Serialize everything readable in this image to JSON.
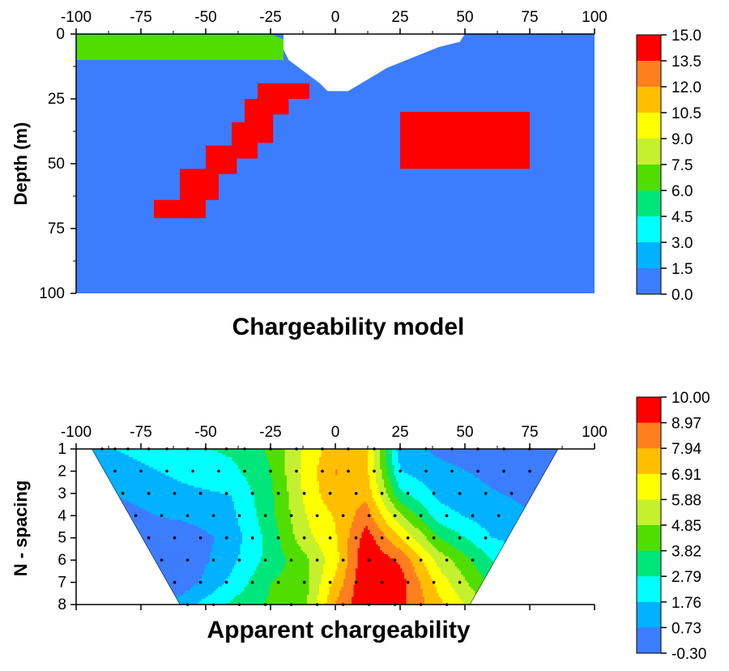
{
  "chart_data": [
    {
      "type": "heatmap",
      "title": "Chargeability model",
      "xlabel": "",
      "ylabel": "Depth (m)",
      "xlim": [
        -100,
        100
      ],
      "ylim": [
        0,
        100
      ],
      "x_ticks": [
        "-100",
        "-75",
        "-50",
        "-25",
        "0",
        "25",
        "50",
        "75",
        "100"
      ],
      "y_ticks": [
        "0",
        "25",
        "50",
        "75",
        "100"
      ],
      "colorbar_labels": [
        "15.0",
        "13.5",
        "12.0",
        "10.5",
        "9.0",
        "7.5",
        "6.0",
        "4.5",
        "3.0",
        "1.5",
        "0.0"
      ],
      "colors": [
        "#ff0000",
        "#ff7f1f",
        "#ffbf00",
        "#ffff00",
        "#c5f02e",
        "#4fde00",
        "#00e67a",
        "#00ffff",
        "#00b2ff",
        "#3c7dff"
      ],
      "background_value": 0.75,
      "regions": [
        {
          "name": "near-surface layer",
          "value": 6.75,
          "polygon": [
            [
              -100,
              0
            ],
            [
              -25,
              0
            ],
            [
              -20,
              2
            ],
            [
              -20,
              10
            ],
            [
              -100,
              10
            ]
          ]
        },
        {
          "name": "dipping body",
          "value": 14.25,
          "polygon": [
            [
              -30,
              19
            ],
            [
              -10,
              19
            ],
            [
              -10,
              25
            ],
            [
              -18,
              25
            ],
            [
              -18,
              31
            ],
            [
              -24,
              31
            ],
            [
              -24,
              42
            ],
            [
              -30,
              42
            ],
            [
              -30,
              48
            ],
            [
              -38,
              48
            ],
            [
              -38,
              54
            ],
            [
              -45,
              54
            ],
            [
              -45,
              64
            ],
            [
              -50,
              64
            ],
            [
              -50,
              71
            ],
            [
              -70,
              71
            ],
            [
              -70,
              64
            ],
            [
              -60,
              64
            ],
            [
              -60,
              52
            ],
            [
              -50,
              52
            ],
            [
              -50,
              43
            ],
            [
              -40,
              43
            ],
            [
              -40,
              34
            ],
            [
              -35,
              34
            ],
            [
              -35,
              25
            ],
            [
              -30,
              25
            ]
          ]
        },
        {
          "name": "rectangular body",
          "value": 14.25,
          "polygon": [
            [
              25,
              30
            ],
            [
              75,
              30
            ],
            [
              75,
              52
            ],
            [
              25,
              52
            ]
          ]
        }
      ],
      "blank_region": [
        [
          -20,
          0
        ],
        [
          50,
          0
        ],
        [
          48,
          3
        ],
        [
          40,
          5
        ],
        [
          35,
          7
        ],
        [
          30,
          9
        ],
        [
          25,
          11
        ],
        [
          20,
          13
        ],
        [
          15,
          16
        ],
        [
          10,
          19
        ],
        [
          5,
          22
        ],
        [
          -3,
          22
        ],
        [
          -6,
          19
        ],
        [
          -10,
          16
        ],
        [
          -14,
          13
        ],
        [
          -18,
          10
        ],
        [
          -20,
          6
        ]
      ]
    },
    {
      "type": "heatmap",
      "title": "Apparent chargeability",
      "xlabel": "",
      "ylabel": "N - spacing",
      "xlim": [
        -100,
        100
      ],
      "ylim": [
        1,
        8
      ],
      "x_ticks": [
        "-100",
        "-75",
        "-50",
        "-25",
        "0",
        "25",
        "50",
        "75",
        "100"
      ],
      "y_ticks": [
        "1",
        "2",
        "3",
        "4",
        "5",
        "6",
        "7",
        "8"
      ],
      "colorbar_labels": [
        "10.00",
        "8.97",
        "7.94",
        "6.91",
        "5.88",
        "4.85",
        "3.82",
        "2.79",
        "1.76",
        "0.73",
        "-0.30"
      ],
      "colors": [
        "#ff0000",
        "#ff7f1f",
        "#ffbf00",
        "#ffff00",
        "#c5f02e",
        "#4fde00",
        "#00e67a",
        "#00ffff",
        "#00b2ff",
        "#3c7dff"
      ],
      "trapezoid": [
        [
          -94,
          1
        ],
        [
          86,
          1
        ],
        [
          52,
          8
        ],
        [
          -60,
          8
        ]
      ],
      "grid_x": [
        -94,
        -60,
        -40,
        -25,
        -12,
        0,
        12,
        25,
        40,
        60,
        86
      ],
      "grid_y": [
        1,
        2,
        3,
        4,
        5,
        6,
        7,
        8
      ],
      "grid_values": [
        [
          1.5,
          2.5,
          3.0,
          4.0,
          6.0,
          7.5,
          7.0,
          1.2,
          0.5,
          0.2,
          0.0
        ],
        [
          1.0,
          2.0,
          2.5,
          3.8,
          6.2,
          8.0,
          7.2,
          1.8,
          1.0,
          0.5,
          0.2
        ],
        [
          0.5,
          1.5,
          1.8,
          3.6,
          6.0,
          7.8,
          7.6,
          3.0,
          1.5,
          0.8,
          0.3
        ],
        [
          0.0,
          1.0,
          1.5,
          3.5,
          5.8,
          7.0,
          8.5,
          5.0,
          2.2,
          1.2,
          0.5
        ],
        [
          -0.2,
          -0.2,
          1.2,
          3.2,
          5.5,
          6.8,
          9.5,
          7.0,
          3.8,
          1.8,
          0.8
        ],
        [
          -0.2,
          -0.3,
          1.5,
          3.2,
          4.5,
          6.5,
          10.0,
          8.8,
          5.5,
          2.8,
          1.2
        ],
        [
          -0.2,
          0.0,
          2.0,
          3.8,
          4.4,
          7.2,
          10.0,
          9.5,
          6.5,
          3.5,
          1.5
        ],
        [
          0.2,
          1.2,
          3.0,
          4.0,
          4.5,
          8.0,
          10.0,
          9.3,
          7.2,
          4.5,
          2.0
        ]
      ],
      "datum_points": [
        [
          -90,
          1
        ],
        [
          -85,
          1
        ],
        [
          -80,
          1
        ],
        [
          -72,
          1
        ],
        [
          -65,
          1
        ],
        [
          -57,
          1
        ],
        [
          -50,
          1
        ],
        [
          -42,
          1
        ],
        [
          -35,
          1
        ],
        [
          -25,
          1
        ],
        [
          -15,
          1
        ],
        [
          -5,
          1
        ],
        [
          5,
          1
        ],
        [
          15,
          1
        ],
        [
          25,
          1
        ],
        [
          35,
          1
        ],
        [
          45,
          1
        ],
        [
          55,
          1
        ],
        [
          65,
          1
        ],
        [
          75,
          1
        ],
        [
          -85,
          2
        ],
        [
          -75,
          2
        ],
        [
          -65,
          2
        ],
        [
          -55,
          2
        ],
        [
          -45,
          2
        ],
        [
          -35,
          2
        ],
        [
          -25,
          2
        ],
        [
          -15,
          2
        ],
        [
          -5,
          2
        ],
        [
          5,
          2
        ],
        [
          15,
          2
        ],
        [
          25,
          2
        ],
        [
          35,
          2
        ],
        [
          45,
          2
        ],
        [
          55,
          2
        ],
        [
          65,
          2
        ],
        [
          75,
          2
        ],
        [
          -82,
          3
        ],
        [
          -72,
          3
        ],
        [
          -62,
          3
        ],
        [
          -52,
          3
        ],
        [
          -42,
          3
        ],
        [
          -32,
          3
        ],
        [
          -22,
          3
        ],
        [
          -12,
          3
        ],
        [
          -2,
          3
        ],
        [
          8,
          3
        ],
        [
          18,
          3
        ],
        [
          28,
          3
        ],
        [
          38,
          3
        ],
        [
          48,
          3
        ],
        [
          58,
          3
        ],
        [
          68,
          3
        ],
        [
          -77,
          4
        ],
        [
          -67,
          4
        ],
        [
          -57,
          4
        ],
        [
          -47,
          4
        ],
        [
          -37,
          4
        ],
        [
          -27,
          4
        ],
        [
          -17,
          4
        ],
        [
          -7,
          4
        ],
        [
          3,
          4
        ],
        [
          13,
          4
        ],
        [
          23,
          4
        ],
        [
          33,
          4
        ],
        [
          43,
          4
        ],
        [
          53,
          4
        ],
        [
          63,
          4
        ],
        [
          -72,
          5
        ],
        [
          -62,
          5
        ],
        [
          -52,
          5
        ],
        [
          -42,
          5
        ],
        [
          -32,
          5
        ],
        [
          -22,
          5
        ],
        [
          -12,
          5
        ],
        [
          -2,
          5
        ],
        [
          8,
          5
        ],
        [
          18,
          5
        ],
        [
          28,
          5
        ],
        [
          38,
          5
        ],
        [
          48,
          5
        ],
        [
          58,
          5
        ],
        [
          -67,
          6
        ],
        [
          -57,
          6
        ],
        [
          -47,
          6
        ],
        [
          -37,
          6
        ],
        [
          -27,
          6
        ],
        [
          -17,
          6
        ],
        [
          -7,
          6
        ],
        [
          3,
          6
        ],
        [
          13,
          6
        ],
        [
          23,
          6
        ],
        [
          33,
          6
        ],
        [
          43,
          6
        ],
        [
          53,
          6
        ],
        [
          -62,
          7
        ],
        [
          -52,
          7
        ],
        [
          -42,
          7
        ],
        [
          -32,
          7
        ],
        [
          -22,
          7
        ],
        [
          -12,
          7
        ],
        [
          -2,
          7
        ],
        [
          8,
          7
        ],
        [
          18,
          7
        ],
        [
          28,
          7
        ],
        [
          38,
          7
        ],
        [
          48,
          7
        ],
        [
          -57,
          8
        ],
        [
          -47,
          8
        ],
        [
          -37,
          8
        ],
        [
          -27,
          8
        ],
        [
          -17,
          8
        ],
        [
          -7,
          8
        ],
        [
          3,
          8
        ],
        [
          13,
          8
        ],
        [
          23,
          8
        ],
        [
          33,
          8
        ],
        [
          43,
          8
        ]
      ]
    }
  ]
}
